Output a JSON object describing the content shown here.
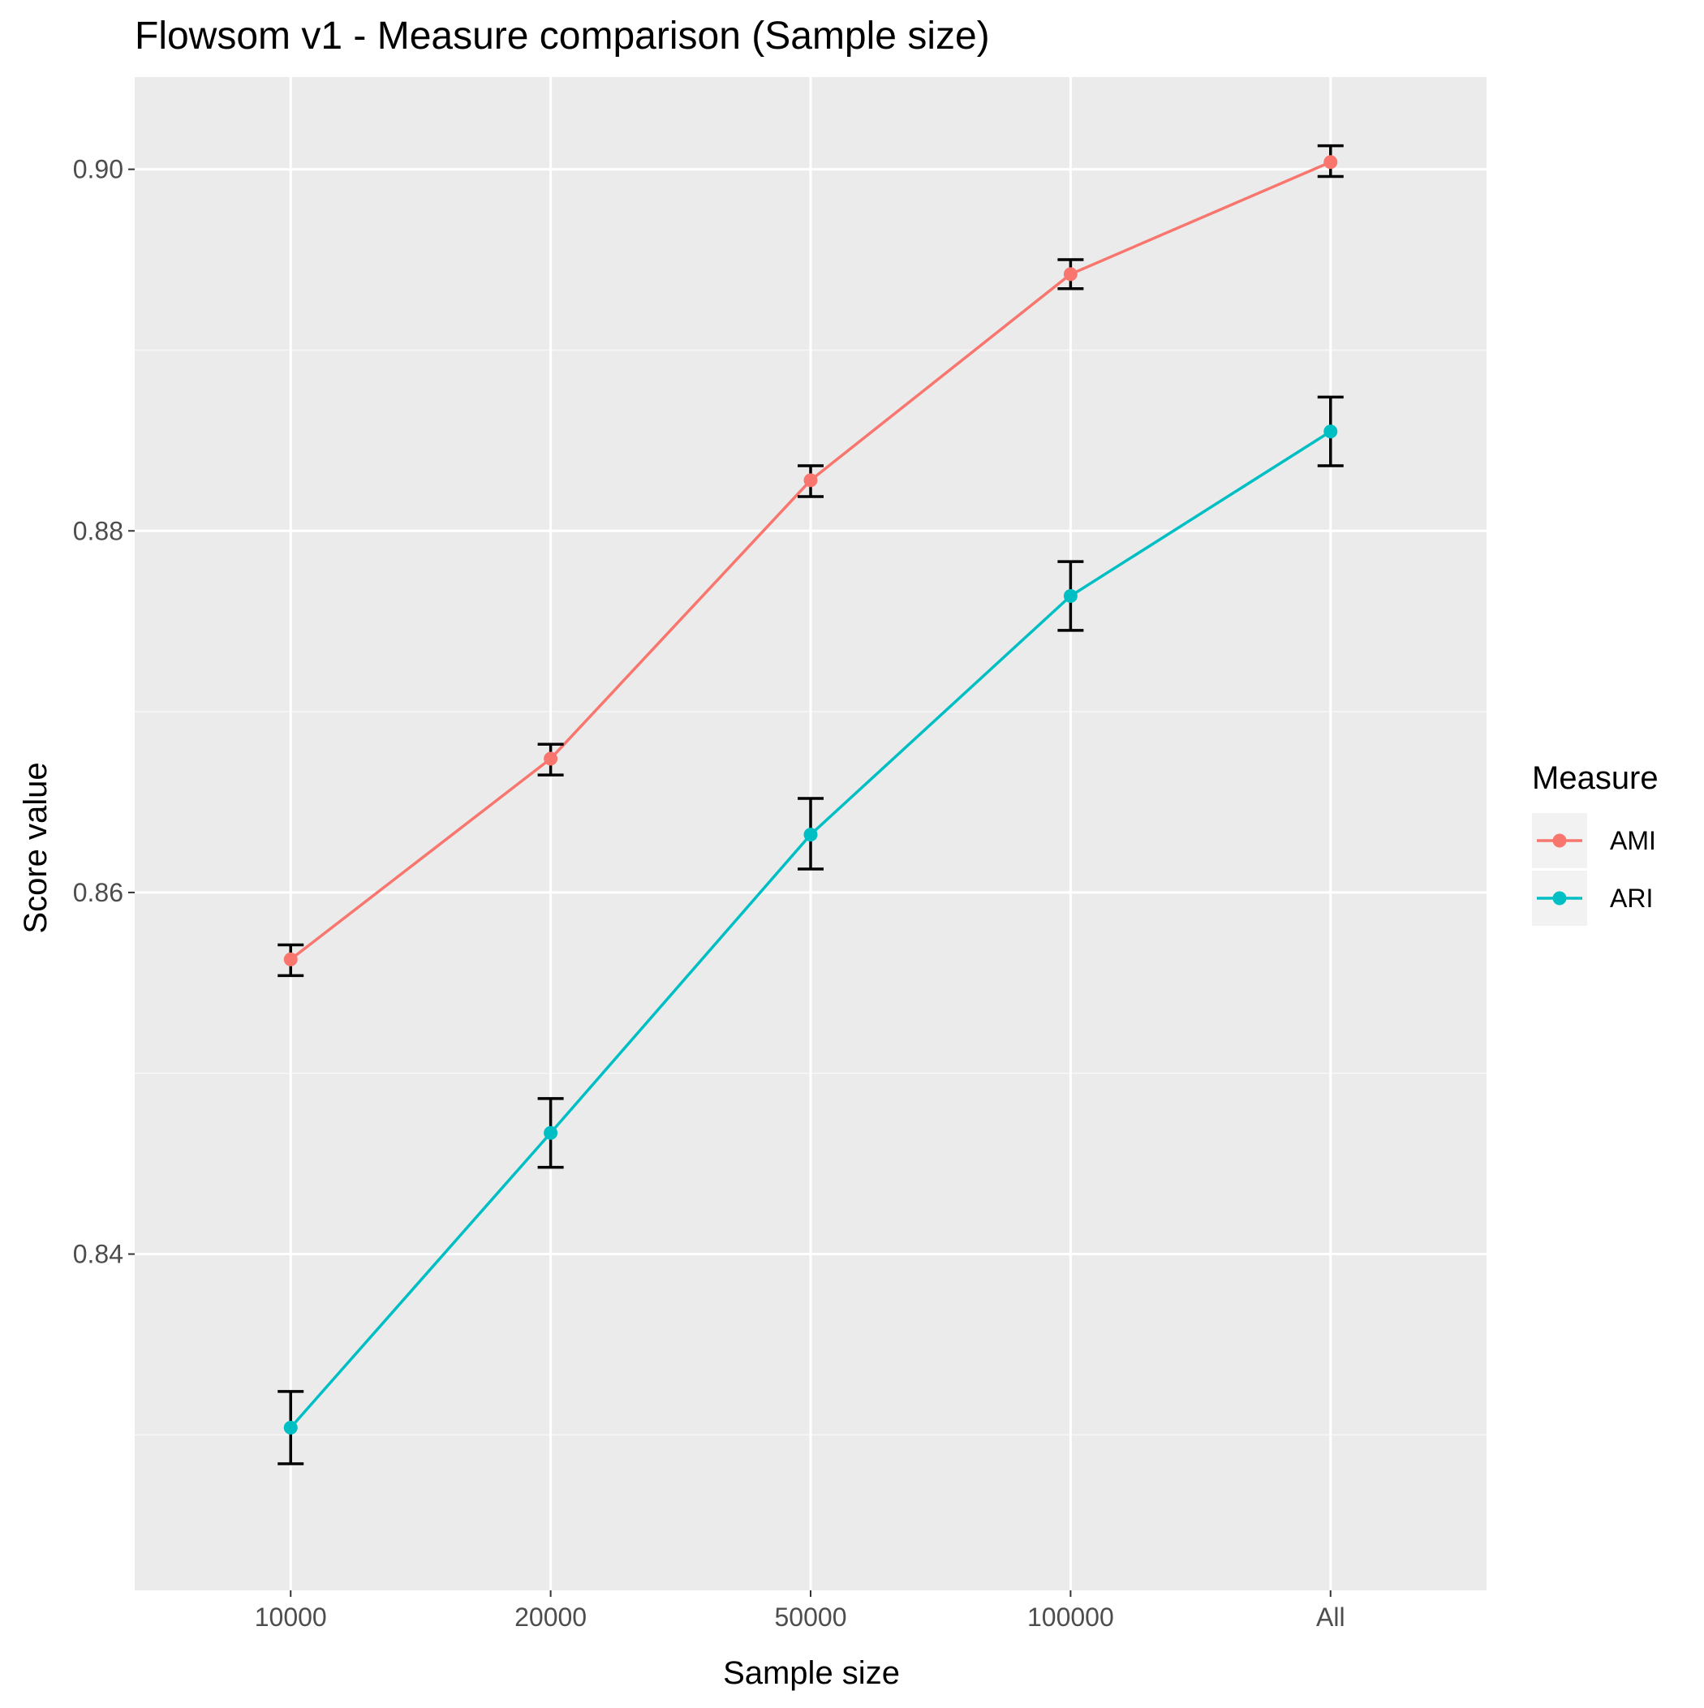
{
  "chart_data": {
    "type": "line",
    "title": "Flowsom v1 - Measure comparison (Sample size)",
    "xlabel": "Sample size",
    "ylabel": "Score value",
    "categories": [
      "10000",
      "20000",
      "50000",
      "100000",
      "All"
    ],
    "ylim": [
      0.8214,
      0.9051
    ],
    "yticks": [
      0.84,
      0.86,
      0.88,
      0.9
    ],
    "ytick_labels": [
      "0.84",
      "0.86",
      "0.88",
      "0.90"
    ],
    "grid": true,
    "legend": {
      "title": "Measure",
      "position": "right"
    },
    "series": [
      {
        "name": "AMI",
        "color": "#F8766D",
        "values": [
          0.8563,
          0.8674,
          0.8828,
          0.8942,
          0.9004
        ],
        "err_low": [
          0.8554,
          0.8665,
          0.8819,
          0.8934,
          0.8996
        ],
        "err_high": [
          0.8571,
          0.8682,
          0.8836,
          0.895,
          0.9013
        ]
      },
      {
        "name": "ARI",
        "color": "#00BFC4",
        "values": [
          0.8304,
          0.8467,
          0.8632,
          0.8764,
          0.8855
        ],
        "err_low": [
          0.8284,
          0.8448,
          0.8613,
          0.8745,
          0.8836
        ],
        "err_high": [
          0.8324,
          0.8486,
          0.8652,
          0.8783,
          0.8874
        ]
      }
    ],
    "style": {
      "panel_bg": "#EBEBEB",
      "grid_major": "#FFFFFF",
      "grid_minor": "#F7F7F7",
      "errorbar": "#000000"
    }
  }
}
